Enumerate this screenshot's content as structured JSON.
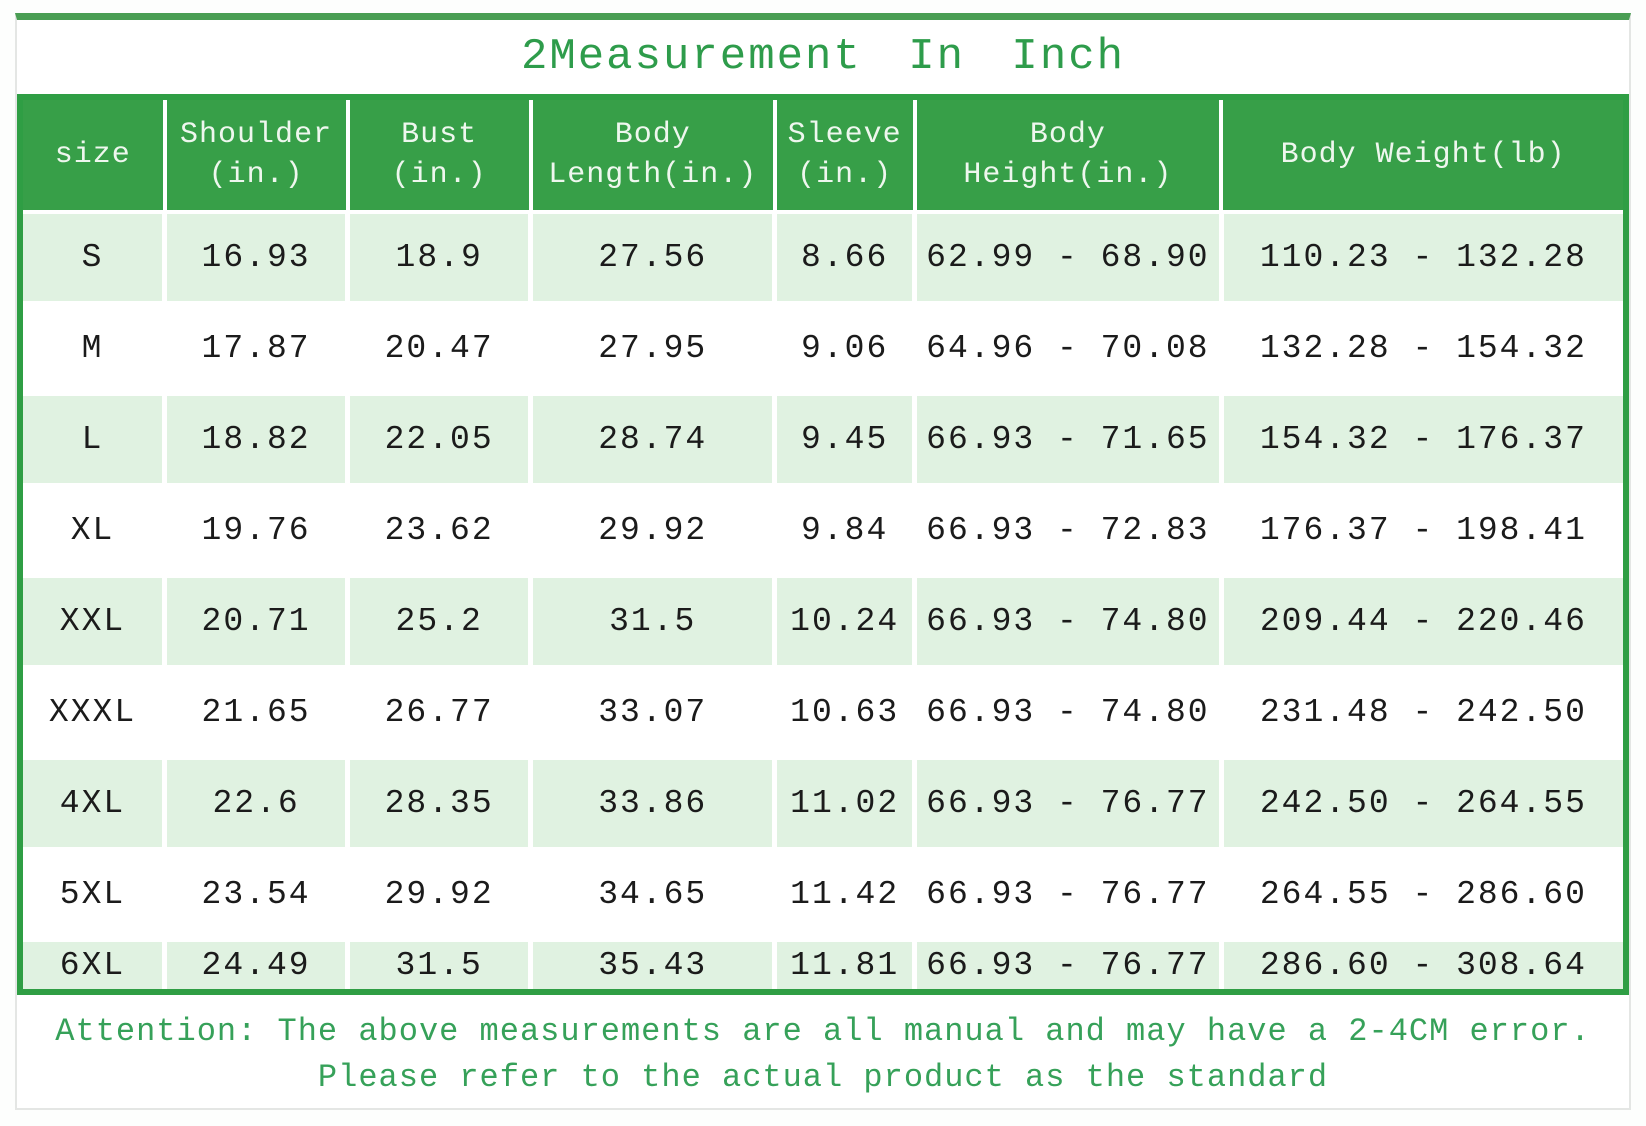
{
  "title": "2Measurement In Inch",
  "table": {
    "columns": [
      {
        "id": "size",
        "lines": [
          "size"
        ]
      },
      {
        "id": "shoulder",
        "lines": [
          "Shoulder",
          "(in.)"
        ]
      },
      {
        "id": "bust",
        "lines": [
          "Bust",
          "(in.)"
        ]
      },
      {
        "id": "body-length",
        "lines": [
          "Body",
          "Length(in.)"
        ]
      },
      {
        "id": "sleeve",
        "lines": [
          "Sleeve",
          "(in.)"
        ]
      },
      {
        "id": "body-height",
        "lines": [
          "Body",
          "Height(in.)"
        ]
      },
      {
        "id": "body-weight",
        "lines": [
          "Body Weight(lb)"
        ]
      }
    ],
    "rows": [
      [
        "S",
        "16.93",
        "18.9",
        "27.56",
        "8.66",
        "62.99 - 68.90",
        "110.23 - 132.28"
      ],
      [
        "M",
        "17.87",
        "20.47",
        "27.95",
        "9.06",
        "64.96 - 70.08",
        "132.28 - 154.32"
      ],
      [
        "L",
        "18.82",
        "22.05",
        "28.74",
        "9.45",
        "66.93 - 71.65",
        "154.32 - 176.37"
      ],
      [
        "XL",
        "19.76",
        "23.62",
        "29.92",
        "9.84",
        "66.93 - 72.83",
        "176.37 - 198.41"
      ],
      [
        "XXL",
        "20.71",
        "25.2",
        "31.5",
        "10.24",
        "66.93 - 74.80",
        "209.44 - 220.46"
      ],
      [
        "XXXL",
        "21.65",
        "26.77",
        "33.07",
        "10.63",
        "66.93 - 74.80",
        "231.48 - 242.50"
      ],
      [
        "4XL",
        "22.6",
        "28.35",
        "33.86",
        "11.02",
        "66.93 - 76.77",
        "242.50 - 264.55"
      ],
      [
        "5XL",
        "23.54",
        "29.92",
        "34.65",
        "11.42",
        "66.93 - 76.77",
        "264.55 - 286.60"
      ],
      [
        "6XL",
        "24.49",
        "31.5",
        "35.43",
        "11.81",
        "66.93 - 76.77",
        "286.60 - 308.64"
      ]
    ]
  },
  "footer": {
    "line1": "Attention: The above measurements are all manual and may have a 2-4CM error.",
    "line2": "Please refer to the actual product as the standard"
  },
  "colors": {
    "header_green": "#379f48",
    "border_green": "#2f9e44",
    "top_bar_green": "#4a9e54",
    "stripe_row_green": "#e0f2e1",
    "title_text_green": "#2e9c4b",
    "footer_text_green": "#36a159",
    "body_text": "#1b1b1b"
  }
}
